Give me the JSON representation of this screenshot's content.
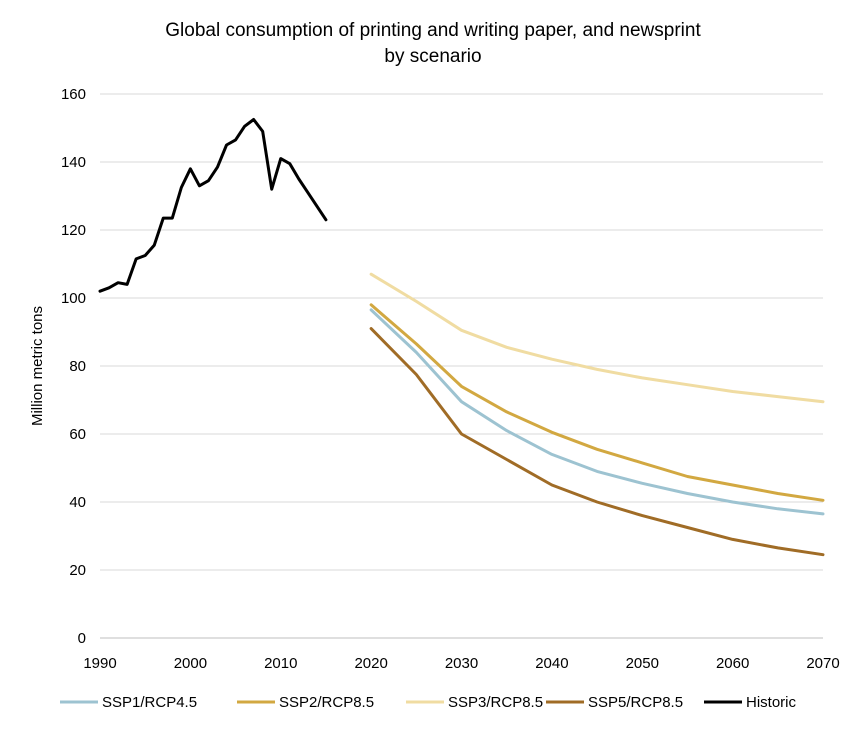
{
  "chart_data": {
    "type": "line",
    "title": "Global consumption of printing and writing paper, and newsprint",
    "subtitle": "by scenario",
    "xlabel": "",
    "ylabel": "Million metric tons",
    "xlim": [
      1990,
      2070
    ],
    "ylim": [
      0,
      160
    ],
    "x_ticks": [
      1990,
      2000,
      2010,
      2020,
      2030,
      2040,
      2050,
      2060,
      2070
    ],
    "y_ticks": [
      0,
      20,
      40,
      60,
      80,
      100,
      120,
      140,
      160
    ],
    "grid": "horizontal",
    "legend_position": "bottom",
    "series": [
      {
        "name": "SSP1/RCP4.5",
        "color": "#9dc3d1",
        "x": [
          2020,
          2025,
          2030,
          2035,
          2040,
          2045,
          2050,
          2055,
          2060,
          2065,
          2070
        ],
        "y": [
          96.5,
          84,
          69.5,
          61,
          54,
          49,
          45.5,
          42.5,
          40,
          38,
          36.5
        ]
      },
      {
        "name": "SSP2/RCP8.5",
        "color": "#d2a841",
        "x": [
          2020,
          2025,
          2030,
          2035,
          2040,
          2045,
          2050,
          2055,
          2060,
          2065,
          2070
        ],
        "y": [
          98,
          86.5,
          74,
          66.5,
          60.5,
          55.5,
          51.5,
          47.5,
          45,
          42.5,
          40.5
        ]
      },
      {
        "name": "SSP3/RCP8.5",
        "color": "#f0dca2",
        "x": [
          2020,
          2025,
          2030,
          2035,
          2040,
          2045,
          2050,
          2055,
          2060,
          2065,
          2070
        ],
        "y": [
          107,
          99,
          90.5,
          85.5,
          82,
          79,
          76.5,
          74.5,
          72.5,
          71,
          69.5
        ]
      },
      {
        "name": "SSP5/RCP8.5",
        "color": "#a06c26",
        "x": [
          2020,
          2025,
          2030,
          2035,
          2040,
          2045,
          2050,
          2055,
          2060,
          2065,
          2070
        ],
        "y": [
          91,
          77.5,
          60,
          52.5,
          45,
          40,
          36,
          32.5,
          29,
          26.5,
          24.5
        ]
      },
      {
        "name": "Historic",
        "color": "#000000",
        "x": [
          1990,
          1991,
          1992,
          1993,
          1994,
          1995,
          1996,
          1997,
          1998,
          1999,
          2000,
          2001,
          2002,
          2003,
          2004,
          2005,
          2006,
          2007,
          2008,
          2009,
          2010,
          2011,
          2012,
          2013,
          2014,
          2015
        ],
        "y": [
          102,
          103,
          104.5,
          104,
          111.5,
          112.5,
          115.5,
          123.5,
          123.5,
          132.5,
          138,
          133,
          134.5,
          138.5,
          145,
          146.5,
          150.5,
          152.5,
          149,
          132,
          141,
          139.5,
          135,
          131,
          127,
          123
        ]
      }
    ]
  }
}
